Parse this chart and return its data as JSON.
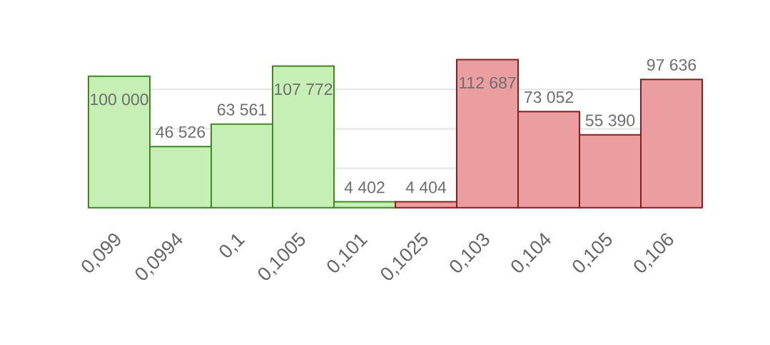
{
  "chart_data": {
    "type": "bar",
    "categories": [
      "0,099",
      "0,0994",
      "0,1",
      "0,1005",
      "0,101",
      "0,1025",
      "0,103",
      "0,104",
      "0,105",
      "0,106"
    ],
    "values": [
      100000,
      46526,
      63561,
      107772,
      4402,
      4404,
      112687,
      73052,
      55390,
      97636
    ],
    "colors": [
      "#c6efb5",
      "#c6efb5",
      "#c6efb5",
      "#c6efb5",
      "#c6efb5",
      "#eb9e9f",
      "#eb9e9f",
      "#eb9e9f",
      "#eb9e9f",
      "#eb9e9f"
    ],
    "value_labels": [
      "100 000",
      "46 526",
      "63 561",
      "107 772",
      "4 402",
      "4 404",
      "112 687",
      "73 052",
      "55 390",
      "97 636"
    ],
    "yticks": [
      {
        "value": 30000,
        "label": null
      },
      {
        "value": 60000,
        "label": null
      },
      {
        "value": 90000,
        "label": null
      }
    ],
    "grid": "y",
    "tick_labels": "x"
  }
}
